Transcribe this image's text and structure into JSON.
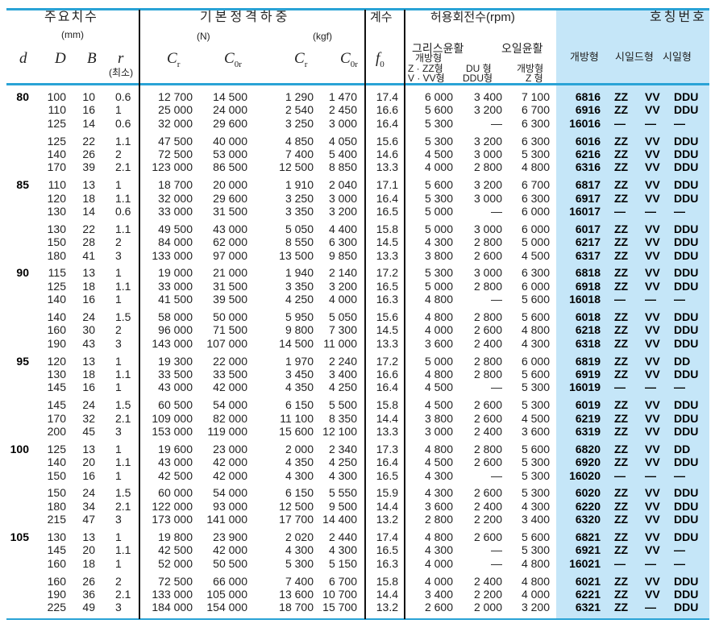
{
  "header": {
    "main_dims": "주요치수",
    "mm": "(mm)",
    "d": "d",
    "D": "D",
    "B": "B",
    "r": "r",
    "r_min": "(최소)",
    "load_rating": "기본정격하중",
    "N": "(N)",
    "kgf": "(kgf)",
    "Cr": "C",
    "Cr_sub": "r",
    "C0r": "C",
    "C0r_sub": "0r",
    "factor": "계수",
    "f0": "f",
    "f0_sub": "0",
    "speed": "허용회전수(rpm)",
    "grease": "그리스윤활",
    "oil": "오일윤활",
    "grease_open": "개방형",
    "grease_zz1": "Z · ZZ형",
    "grease_zz2": "V · VV형",
    "grease_du1": "DU  형",
    "grease_du2": "DDU형",
    "oil_open1": "개방형",
    "oil_open2": "Z  형",
    "designation": "호칭번호",
    "open_type": "개방형",
    "shield_type": "시일드형",
    "seal_type": "시일형"
  },
  "groups": [
    {
      "d": "80",
      "rows": [
        [
          "100",
          "10",
          "0.6",
          "12 700",
          "14 500",
          "1 290",
          "1 470",
          "17.4",
          "6 000",
          "3 400",
          "7 100",
          "6816",
          "ZZ",
          "VV",
          "DDU"
        ],
        [
          "110",
          "16",
          "1",
          "25 000",
          "24 000",
          "2 540",
          "2 450",
          "16.6",
          "5 600",
          "3 200",
          "6 700",
          "6916",
          "ZZ",
          "VV",
          "DDU"
        ],
        [
          "125",
          "14",
          "0.6",
          "32 000",
          "29 600",
          "3 250",
          "3 000",
          "16.4",
          "5 300",
          "—",
          "6 300",
          "16016",
          "—",
          "—",
          "—"
        ]
      ]
    },
    {
      "d": "",
      "rows": [
        [
          "125",
          "22",
          "1.1",
          "47 500",
          "40 000",
          "4 850",
          "4 050",
          "15.6",
          "5 300",
          "3 200",
          "6 300",
          "6016",
          "ZZ",
          "VV",
          "DDU"
        ],
        [
          "140",
          "26",
          "2",
          "72 500",
          "53 000",
          "7 400",
          "5 400",
          "14.6",
          "4 500",
          "3 000",
          "5 300",
          "6216",
          "ZZ",
          "VV",
          "DDU"
        ],
        [
          "170",
          "39",
          "2.1",
          "123 000",
          "86 500",
          "12 500",
          "8 850",
          "13.3",
          "4 000",
          "2 800",
          "4 800",
          "6316",
          "ZZ",
          "VV",
          "DDU"
        ]
      ]
    },
    {
      "d": "85",
      "rows": [
        [
          "110",
          "13",
          "1",
          "18 700",
          "20 000",
          "1 910",
          "2 040",
          "17.1",
          "5 600",
          "3 200",
          "6 700",
          "6817",
          "ZZ",
          "VV",
          "DDU"
        ],
        [
          "120",
          "18",
          "1.1",
          "32 000",
          "29 600",
          "3 250",
          "3 000",
          "16.4",
          "5 300",
          "3 000",
          "6 300",
          "6917",
          "ZZ",
          "VV",
          "DDU"
        ],
        [
          "130",
          "14",
          "0.6",
          "33 000",
          "31 500",
          "3 350",
          "3 200",
          "16.5",
          "5 000",
          "—",
          "6 000",
          "16017",
          "—",
          "—",
          "—"
        ]
      ]
    },
    {
      "d": "",
      "rows": [
        [
          "130",
          "22",
          "1.1",
          "49 500",
          "43 000",
          "5 050",
          "4 400",
          "15.8",
          "5 000",
          "3 000",
          "6 000",
          "6017",
          "ZZ",
          "VV",
          "DDU"
        ],
        [
          "150",
          "28",
          "2",
          "84 000",
          "62 000",
          "8 550",
          "6 300",
          "14.5",
          "4 300",
          "2 800",
          "5 000",
          "6217",
          "ZZ",
          "VV",
          "DDU"
        ],
        [
          "180",
          "41",
          "3",
          "133 000",
          "97 000",
          "13 500",
          "9 850",
          "13.3",
          "3 800",
          "2 600",
          "4 500",
          "6317",
          "ZZ",
          "VV",
          "DDU"
        ]
      ]
    },
    {
      "d": "90",
      "rows": [
        [
          "115",
          "13",
          "1",
          "19 000",
          "21 000",
          "1 940",
          "2 140",
          "17.2",
          "5 300",
          "3 000",
          "6 300",
          "6818",
          "ZZ",
          "VV",
          "DDU"
        ],
        [
          "125",
          "18",
          "1.1",
          "33 000",
          "31 500",
          "3 350",
          "3 200",
          "16.5",
          "5 000",
          "2 800",
          "6 000",
          "6918",
          "ZZ",
          "VV",
          "DDU"
        ],
        [
          "140",
          "16",
          "1",
          "41 500",
          "39 500",
          "4 250",
          "4 000",
          "16.3",
          "4 800",
          "—",
          "5 600",
          "16018",
          "—",
          "—",
          "—"
        ]
      ]
    },
    {
      "d": "",
      "rows": [
        [
          "140",
          "24",
          "1.5",
          "58 000",
          "50 000",
          "5 950",
          "5 050",
          "15.6",
          "4 800",
          "2 800",
          "5 600",
          "6018",
          "ZZ",
          "VV",
          "DDU"
        ],
        [
          "160",
          "30",
          "2",
          "96 000",
          "71 500",
          "9 800",
          "7 300",
          "14.5",
          "4 000",
          "2 600",
          "4 800",
          "6218",
          "ZZ",
          "VV",
          "DDU"
        ],
        [
          "190",
          "43",
          "3",
          "143 000",
          "107 000",
          "14 500",
          "11 000",
          "13.3",
          "3 600",
          "2 400",
          "4 300",
          "6318",
          "ZZ",
          "VV",
          "DDU"
        ]
      ]
    },
    {
      "d": "95",
      "rows": [
        [
          "120",
          "13",
          "1",
          "19 300",
          "22 000",
          "1 970",
          "2 240",
          "17.2",
          "5 000",
          "2 800",
          "6 000",
          "6819",
          "ZZ",
          "VV",
          "DD"
        ],
        [
          "130",
          "18",
          "1.1",
          "33 500",
          "33 500",
          "3 450",
          "3 400",
          "16.6",
          "4 800",
          "2 800",
          "5 600",
          "6919",
          "ZZ",
          "VV",
          "DDU"
        ],
        [
          "145",
          "16",
          "1",
          "43 000",
          "42 000",
          "4 350",
          "4 250",
          "16.4",
          "4 500",
          "—",
          "5 300",
          "16019",
          "—",
          "—",
          "—"
        ]
      ]
    },
    {
      "d": "",
      "rows": [
        [
          "145",
          "24",
          "1.5",
          "60 500",
          "54 000",
          "6 150",
          "5 500",
          "15.8",
          "4 500",
          "2 600",
          "5 300",
          "6019",
          "ZZ",
          "VV",
          "DDU"
        ],
        [
          "170",
          "32",
          "2.1",
          "109 000",
          "82 000",
          "11 100",
          "8 350",
          "14.4",
          "3 800",
          "2 600",
          "4 500",
          "6219",
          "ZZ",
          "VV",
          "DDU"
        ],
        [
          "200",
          "45",
          "3",
          "153 000",
          "119 000",
          "15 600",
          "12 100",
          "13.3",
          "3 000",
          "2 400",
          "3 600",
          "6319",
          "ZZ",
          "VV",
          "DDU"
        ]
      ]
    },
    {
      "d": "100",
      "rows": [
        [
          "125",
          "13",
          "1",
          "19 600",
          "23 000",
          "2 000",
          "2 340",
          "17.3",
          "4 800",
          "2 800",
          "5 600",
          "6820",
          "ZZ",
          "VV",
          "DD"
        ],
        [
          "140",
          "20",
          "1.1",
          "43 000",
          "42 000",
          "4 350",
          "4 250",
          "16.4",
          "4 500",
          "2 600",
          "5 300",
          "6920",
          "ZZ",
          "VV",
          "DDU"
        ],
        [
          "150",
          "16",
          "1",
          "42 500",
          "42 000",
          "4 300",
          "4 300",
          "16.5",
          "4 300",
          "—",
          "5 300",
          "16020",
          "—",
          "—",
          "—"
        ]
      ]
    },
    {
      "d": "",
      "rows": [
        [
          "150",
          "24",
          "1.5",
          "60 000",
          "54 000",
          "6 150",
          "5 550",
          "15.9",
          "4 300",
          "2 600",
          "5 300",
          "6020",
          "ZZ",
          "VV",
          "DDU"
        ],
        [
          "180",
          "34",
          "2.1",
          "122 000",
          "93 000",
          "12 500",
          "9 500",
          "14.4",
          "3 600",
          "2 400",
          "4 300",
          "6220",
          "ZZ",
          "VV",
          "DDU"
        ],
        [
          "215",
          "47",
          "3",
          "173 000",
          "141 000",
          "17 700",
          "14 400",
          "13.2",
          "2 800",
          "2 200",
          "3 400",
          "6320",
          "ZZ",
          "VV",
          "DDU"
        ]
      ]
    },
    {
      "d": "105",
      "rows": [
        [
          "130",
          "13",
          "1",
          "19 800",
          "23 900",
          "2 020",
          "2 440",
          "17.4",
          "4 800",
          "2 600",
          "5 600",
          "6821",
          "ZZ",
          "VV",
          "DDU"
        ],
        [
          "145",
          "20",
          "1.1",
          "42 500",
          "42 000",
          "4 300",
          "4 300",
          "16.5",
          "4 300",
          "—",
          "5 300",
          "6921",
          "ZZ",
          "VV",
          "—"
        ],
        [
          "160",
          "18",
          "1",
          "52 000",
          "50 500",
          "5 300",
          "5 150",
          "16.3",
          "4 000",
          "—",
          "4 800",
          "16021",
          "—",
          "—",
          "—"
        ]
      ]
    },
    {
      "d": "",
      "rows": [
        [
          "160",
          "26",
          "2",
          "72 500",
          "66 000",
          "7 400",
          "6 700",
          "15.8",
          "4 000",
          "2 400",
          "4 800",
          "6021",
          "ZZ",
          "VV",
          "DDU"
        ],
        [
          "190",
          "36",
          "2.1",
          "133 000",
          "105 000",
          "13 600",
          "10 700",
          "14.4",
          "3 400",
          "2 200",
          "4 000",
          "6221",
          "ZZ",
          "VV",
          "DDU"
        ],
        [
          "225",
          "49",
          "3",
          "184 000",
          "154 000",
          "18 700",
          "15 700",
          "13.2",
          "2 600",
          "2 000",
          "3 200",
          "6321",
          "ZZ",
          "—",
          "DDU"
        ]
      ]
    }
  ],
  "colors": {
    "rule": "#2aa3d6",
    "designation_bg": "#c5e6f8"
  }
}
